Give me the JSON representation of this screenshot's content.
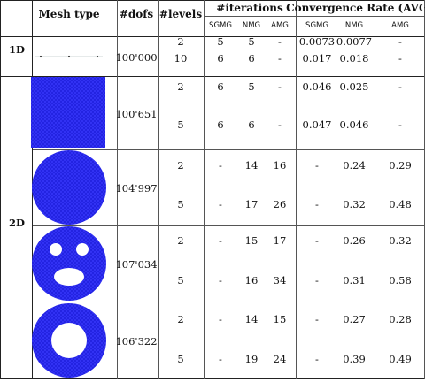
{
  "headers": {
    "mesh_type": "Mesh type",
    "dofs": "#dofs",
    "levels": "#levels",
    "iterations": "#iterations",
    "convergence": "Convergence Rate (AVG)",
    "sub": [
      "SGMG",
      "NMG",
      "AMG",
      "SGMG",
      "NMG",
      "AMG"
    ]
  },
  "dims": {
    "d1": "1D",
    "d2": "2D"
  },
  "colors": {
    "mesh_fill": "#2121e0",
    "mesh_line": "#3a3aff"
  },
  "groups": [
    {
      "mesh": "line-1d",
      "dofs": "100'000",
      "rows": [
        {
          "levels": "2",
          "vals": [
            "5",
            "5",
            "-",
            "0.0073",
            "0.0077",
            "-"
          ]
        },
        {
          "levels": "10",
          "vals": [
            "6",
            "6",
            "-",
            "0.017",
            "0.018",
            "-"
          ]
        }
      ]
    },
    {
      "mesh": "square",
      "dofs": "100'651",
      "rows": [
        {
          "levels": "2",
          "vals": [
            "6",
            "5",
            "-",
            "0.046",
            "0.025",
            "-"
          ]
        },
        {
          "levels": "5",
          "vals": [
            "6",
            "6",
            "-",
            "0.047",
            "0.046",
            "-"
          ]
        }
      ]
    },
    {
      "mesh": "disk",
      "dofs": "104'997",
      "rows": [
        {
          "levels": "2",
          "vals": [
            "-",
            "14",
            "16",
            "-",
            "0.24",
            "0.29"
          ]
        },
        {
          "levels": "5",
          "vals": [
            "-",
            "17",
            "26",
            "-",
            "0.32",
            "0.48"
          ]
        }
      ]
    },
    {
      "mesh": "face",
      "dofs": "107'034",
      "rows": [
        {
          "levels": "2",
          "vals": [
            "-",
            "15",
            "17",
            "-",
            "0.26",
            "0.32"
          ]
        },
        {
          "levels": "5",
          "vals": [
            "-",
            "16",
            "34",
            "-",
            "0.31",
            "0.58"
          ]
        }
      ]
    },
    {
      "mesh": "annulus",
      "dofs": "106'322",
      "rows": [
        {
          "levels": "2",
          "vals": [
            "-",
            "14",
            "15",
            "-",
            "0.27",
            "0.28"
          ]
        },
        {
          "levels": "5",
          "vals": [
            "-",
            "19",
            "24",
            "-",
            "0.39",
            "0.49"
          ]
        }
      ]
    }
  ]
}
